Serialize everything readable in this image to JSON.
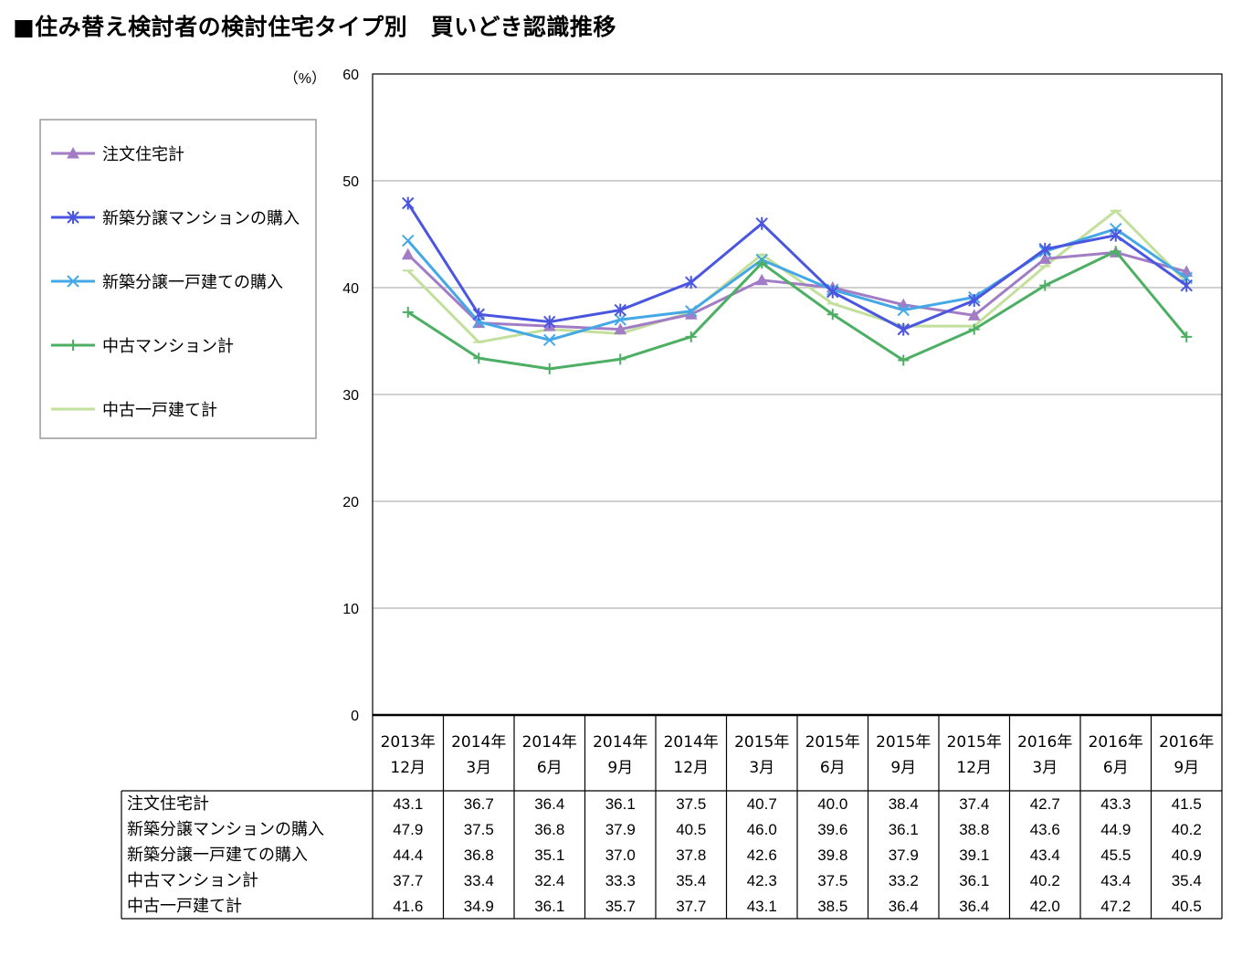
{
  "title": "■住み替え検討者の検討住宅タイプ別　買いどき認識推移",
  "chart_data": {
    "type": "line",
    "title": "■住み替え検討者の検討住宅タイプ別　買いどき認識推移",
    "ylabel": "（%）",
    "xlabel": "",
    "ylim": [
      0,
      60
    ],
    "yticks": [
      0,
      10,
      20,
      30,
      40,
      50,
      60
    ],
    "grid": true,
    "legend_position": "left",
    "categories": [
      [
        "2013年",
        "12月"
      ],
      [
        "2014年",
        "3月"
      ],
      [
        "2014年",
        "6月"
      ],
      [
        "2014年",
        "9月"
      ],
      [
        "2014年",
        "12月"
      ],
      [
        "2015年",
        "3月"
      ],
      [
        "2015年",
        "6月"
      ],
      [
        "2015年",
        "9月"
      ],
      [
        "2015年",
        "12月"
      ],
      [
        "2016年",
        "3月"
      ],
      [
        "2016年",
        "6月"
      ],
      [
        "2016年",
        "9月"
      ]
    ],
    "series": [
      {
        "name": "注文住宅計",
        "color": "#a27dc6",
        "marker": "triangle",
        "values": [
          "43.1",
          "36.7",
          "36.4",
          "36.1",
          "37.5",
          "40.7",
          "40.0",
          "38.4",
          "37.4",
          "42.7",
          "43.3",
          "41.5"
        ]
      },
      {
        "name": "新築分譲マンションの購入",
        "color": "#4a56e0",
        "marker": "star",
        "values": [
          "47.9",
          "37.5",
          "36.8",
          "37.9",
          "40.5",
          "46.0",
          "39.6",
          "36.1",
          "38.8",
          "43.6",
          "44.9",
          "40.2"
        ]
      },
      {
        "name": "新築分譲一戸建ての購入",
        "color": "#45a8e6",
        "marker": "x",
        "values": [
          "44.4",
          "36.8",
          "35.1",
          "37.0",
          "37.8",
          "42.6",
          "39.8",
          "37.9",
          "39.1",
          "43.4",
          "45.5",
          "40.9"
        ]
      },
      {
        "name": "中古マンション計",
        "color": "#4caf63",
        "marker": "plus",
        "values": [
          "37.7",
          "33.4",
          "32.4",
          "33.3",
          "35.4",
          "42.3",
          "37.5",
          "33.2",
          "36.1",
          "40.2",
          "43.4",
          "35.4"
        ]
      },
      {
        "name": "中古一戸建て計",
        "color": "#c2df9c",
        "marker": "dash",
        "values": [
          "41.6",
          "34.9",
          "36.1",
          "35.7",
          "37.7",
          "43.1",
          "38.5",
          "36.4",
          "36.4",
          "42.0",
          "47.2",
          "40.5"
        ]
      }
    ]
  }
}
